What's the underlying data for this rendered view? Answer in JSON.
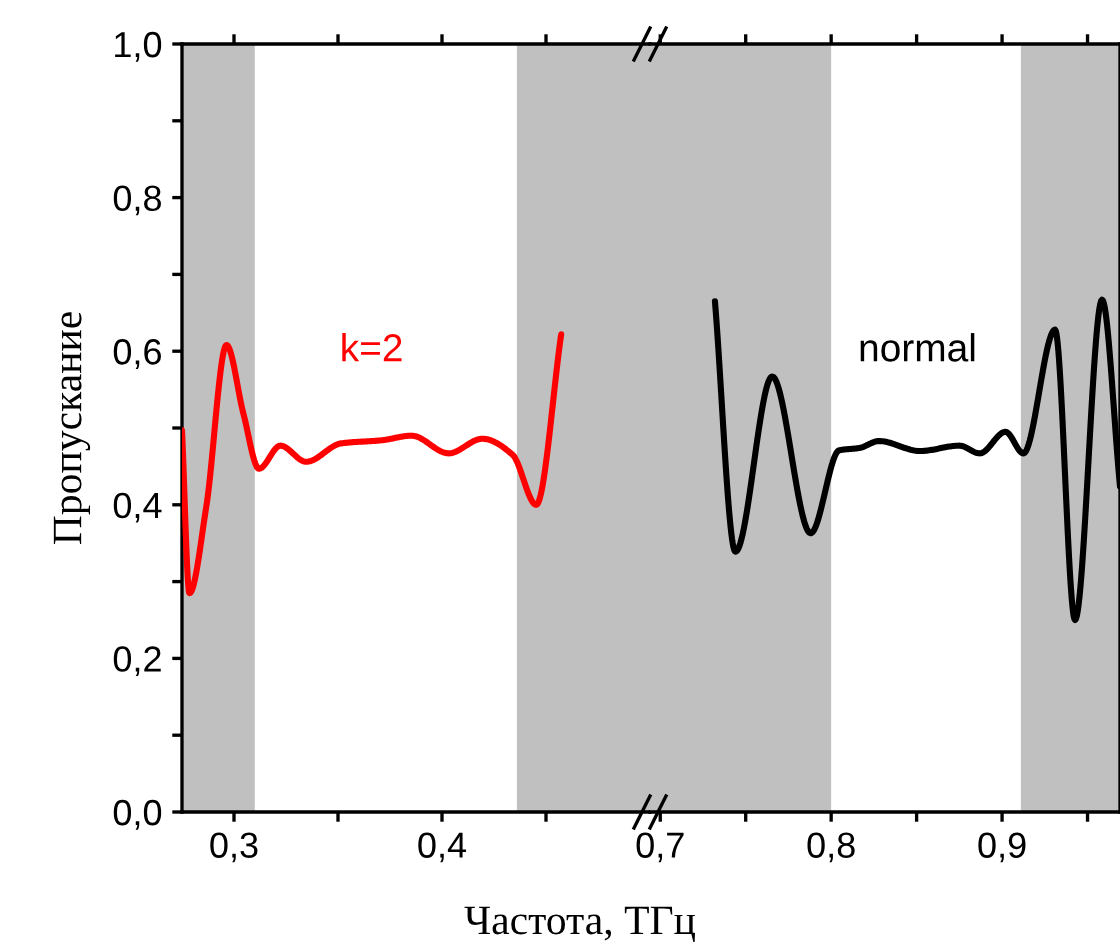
{
  "chart_data": [
    {
      "type": "line",
      "ylabel": "Пропускание",
      "xlabel": "Частота, ТГц",
      "xlim": [
        0.275,
        0.5
      ],
      "xticks": [
        {
          "value": 0.3,
          "label": "0,3"
        },
        {
          "value": 0.35,
          "label": null
        },
        {
          "value": 0.4,
          "label": "0,4"
        },
        {
          "value": 0.45,
          "label": null
        }
      ],
      "ylim": [
        0,
        1
      ],
      "yticks": [
        {
          "value": 0,
          "label": "0,0"
        },
        {
          "value": 0.1,
          "label": null
        },
        {
          "value": 0.2,
          "label": "0,2"
        },
        {
          "value": 0.3,
          "label": null
        },
        {
          "value": 0.4,
          "label": "0,4"
        },
        {
          "value": 0.5,
          "label": null
        },
        {
          "value": 0.6,
          "label": "0,6"
        },
        {
          "value": 0.7,
          "label": null
        },
        {
          "value": 0.8,
          "label": "0,8"
        },
        {
          "value": 0.9,
          "label": null
        },
        {
          "value": 1.0,
          "label": "1,0"
        }
      ],
      "bands": [
        {
          "axis": "x",
          "from": 0.275,
          "to": 0.31,
          "color": "#c0c0c0"
        },
        {
          "axis": "x",
          "from": 0.436,
          "to": 0.5,
          "color": "#c0c0c0"
        }
      ],
      "grid": false,
      "legend": false,
      "series": [
        {
          "name": "k=2",
          "color": "#ff0000",
          "x": [
            0.275,
            0.2786,
            0.2867,
            0.2964,
            0.3045,
            0.312,
            0.3223,
            0.3347,
            0.3515,
            0.371,
            0.3854,
            0.4032,
            0.4194,
            0.434,
            0.4453,
            0.4573
          ],
          "values": [
            0.497,
            0.285,
            0.398,
            0.608,
            0.519,
            0.447,
            0.477,
            0.456,
            0.48,
            0.484,
            0.49,
            0.467,
            0.486,
            0.465,
            0.4,
            0.622
          ]
        }
      ]
    },
    {
      "type": "line",
      "tick_labels": "x",
      "xlim": [
        0.694,
        0.969
      ],
      "xticks": [
        {
          "value": 0.7,
          "label": "0,7"
        },
        {
          "value": 0.75,
          "label": null
        },
        {
          "value": 0.8,
          "label": "0,8"
        },
        {
          "value": 0.85,
          "label": null
        },
        {
          "value": 0.9,
          "label": "0,9"
        },
        {
          "value": 0.95,
          "label": null
        }
      ],
      "ylim": [
        0,
        1
      ],
      "yticks": [
        {
          "value": 0.2,
          "label": null
        },
        {
          "value": 0.4,
          "label": null
        },
        {
          "value": 0.6,
          "label": null
        },
        {
          "value": 0.8,
          "label": null
        }
      ],
      "bands": [
        {
          "axis": "x",
          "from": 0.694,
          "to": 0.8,
          "color": "#c0c0c0"
        },
        {
          "axis": "x",
          "from": 0.911,
          "to": 0.969,
          "color": "#c0c0c0"
        }
      ],
      "grid": false,
      "legend": false,
      "series": [
        {
          "name": "normal",
          "color": "#000000",
          "x": [
            0.732,
            0.744,
            0.7655,
            0.788,
            0.8047,
            0.8165,
            0.828,
            0.852,
            0.875,
            0.887,
            0.902,
            0.9125,
            0.931,
            0.9427,
            0.9585,
            0.969
          ],
          "values": [
            0.665,
            0.339,
            0.567,
            0.363,
            0.471,
            0.474,
            0.483,
            0.47,
            0.477,
            0.467,
            0.495,
            0.467,
            0.628,
            0.25,
            0.667,
            0.424
          ]
        }
      ]
    }
  ]
}
